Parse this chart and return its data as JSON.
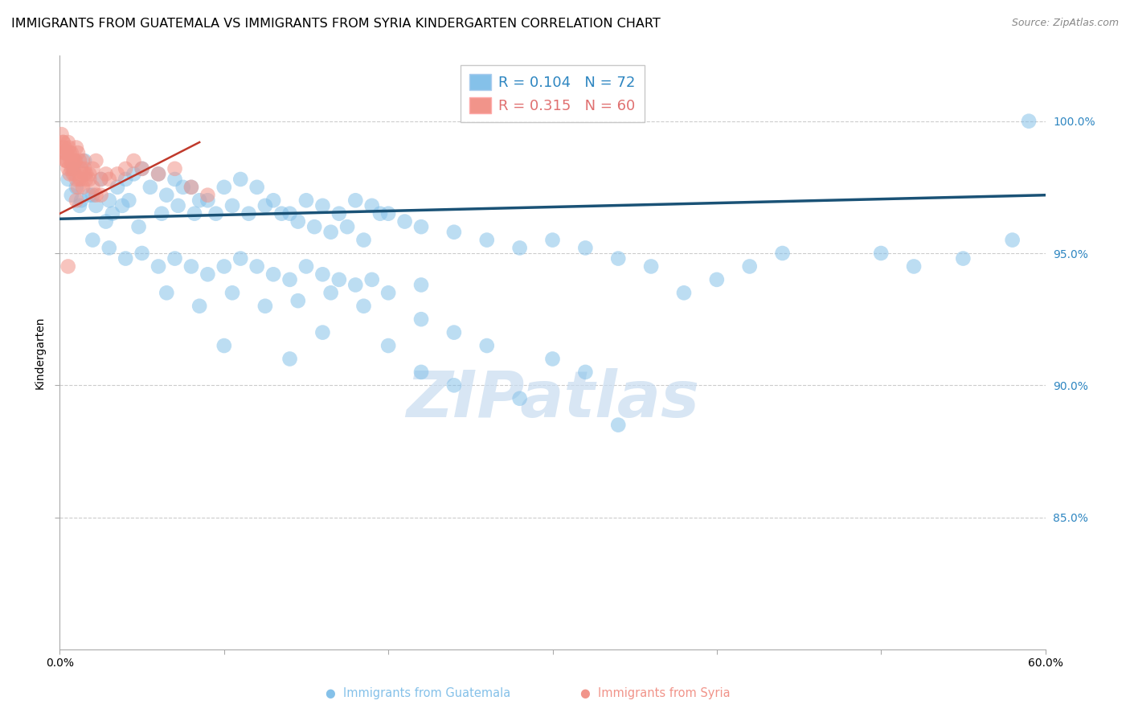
{
  "title": "IMMIGRANTS FROM GUATEMALA VS IMMIGRANTS FROM SYRIA KINDERGARTEN CORRELATION CHART",
  "source": "Source: ZipAtlas.com",
  "ylabel": "Kindergarten",
  "xlim": [
    0.0,
    60.0
  ],
  "ylim": [
    80.0,
    102.5
  ],
  "blue_color": "#85C1E9",
  "pink_color": "#F1948A",
  "blue_line_color": "#1A5276",
  "pink_line_color": "#C0392B",
  "right_axis_color": "#2E86C1",
  "watermark": "ZIPatlas",
  "legend_R1": "R = 0.104",
  "legend_N1": "N = 72",
  "legend_R2": "R = 0.315",
  "legend_N2": "N = 60",
  "blue_scatter_x": [
    0.5,
    0.8,
    1.0,
    1.5,
    2.0,
    2.5,
    3.0,
    3.5,
    1.2,
    1.8,
    4.0,
    4.5,
    5.0,
    6.0,
    7.0,
    8.0,
    9.0,
    10.0,
    11.0,
    12.0,
    13.0,
    14.0,
    15.0,
    6.5,
    7.5,
    8.5,
    16.0,
    17.0,
    18.0,
    3.8,
    4.2,
    5.5,
    9.5,
    10.5,
    11.5,
    12.5,
    13.5,
    14.5,
    19.0,
    20.0,
    2.2,
    2.8,
    3.2,
    4.8,
    6.2,
    7.2,
    8.2,
    15.5,
    16.5,
    17.5,
    18.5,
    19.5,
    21.0,
    22.0,
    24.0,
    26.0,
    28.0,
    30.0,
    32.0,
    34.0,
    36.0,
    38.0,
    40.0,
    42.0,
    44.0,
    50.0,
    52.0,
    55.0,
    58.0,
    0.7,
    1.3,
    59.0
  ],
  "blue_scatter_y": [
    97.8,
    98.2,
    97.5,
    98.5,
    97.2,
    97.8,
    97.0,
    97.5,
    96.8,
    97.2,
    97.8,
    98.0,
    98.2,
    98.0,
    97.8,
    97.5,
    97.0,
    97.5,
    97.8,
    97.5,
    97.0,
    96.5,
    97.0,
    97.2,
    97.5,
    97.0,
    96.8,
    96.5,
    97.0,
    96.8,
    97.0,
    97.5,
    96.5,
    96.8,
    96.5,
    96.8,
    96.5,
    96.2,
    96.8,
    96.5,
    96.8,
    96.2,
    96.5,
    96.0,
    96.5,
    96.8,
    96.5,
    96.0,
    95.8,
    96.0,
    95.5,
    96.5,
    96.2,
    96.0,
    95.8,
    95.5,
    95.2,
    95.5,
    95.2,
    94.8,
    94.5,
    93.5,
    94.0,
    94.5,
    95.0,
    95.0,
    94.5,
    94.8,
    95.5,
    97.2,
    97.0,
    100.0
  ],
  "blue_scatter_x2": [
    2.0,
    3.0,
    4.0,
    5.0,
    6.0,
    7.0,
    8.0,
    9.0,
    10.0,
    11.0,
    12.0,
    13.0,
    14.0,
    15.0,
    16.0,
    17.0,
    18.0,
    19.0,
    20.0,
    22.0,
    6.5,
    8.5,
    10.5,
    12.5,
    14.5,
    16.5,
    18.5,
    22.0,
    24.0,
    26.0
  ],
  "blue_scatter_y2": [
    95.5,
    95.2,
    94.8,
    95.0,
    94.5,
    94.8,
    94.5,
    94.2,
    94.5,
    94.8,
    94.5,
    94.2,
    94.0,
    94.5,
    94.2,
    94.0,
    93.8,
    94.0,
    93.5,
    93.8,
    93.5,
    93.0,
    93.5,
    93.0,
    93.2,
    93.5,
    93.0,
    92.5,
    92.0,
    91.5
  ],
  "blue_low_x": [
    10.0,
    14.0,
    16.0,
    20.0,
    22.0,
    24.0,
    28.0,
    30.0,
    32.0,
    34.0
  ],
  "blue_low_y": [
    91.5,
    91.0,
    92.0,
    91.5,
    90.5,
    90.0,
    89.5,
    91.0,
    90.5,
    88.5
  ],
  "pink_scatter_x": [
    0.1,
    0.15,
    0.2,
    0.25,
    0.3,
    0.35,
    0.4,
    0.45,
    0.5,
    0.55,
    0.6,
    0.65,
    0.7,
    0.75,
    0.8,
    0.85,
    0.9,
    0.95,
    1.0,
    1.1,
    1.2,
    1.3,
    1.4,
    1.5,
    1.6,
    1.8,
    2.0,
    2.2,
    2.5,
    2.8,
    3.0,
    3.5,
    4.0,
    4.5,
    5.0,
    6.0,
    7.0,
    8.0,
    9.0,
    0.2,
    0.3,
    0.4,
    0.5,
    0.6,
    0.7,
    0.8,
    0.9,
    1.0,
    1.1,
    1.2,
    1.3,
    1.4,
    1.5,
    1.6,
    1.8,
    2.0,
    2.2,
    2.5,
    1.0,
    0.5
  ],
  "pink_scatter_y": [
    99.5,
    99.0,
    99.2,
    98.8,
    99.0,
    98.5,
    98.8,
    98.5,
    99.2,
    99.0,
    98.8,
    98.5,
    98.8,
    98.5,
    98.5,
    98.2,
    98.5,
    98.5,
    99.0,
    98.8,
    98.5,
    98.2,
    98.5,
    98.2,
    98.0,
    97.8,
    97.5,
    97.2,
    97.8,
    98.0,
    97.8,
    98.0,
    98.2,
    98.5,
    98.2,
    98.0,
    98.2,
    97.5,
    97.2,
    99.2,
    98.8,
    98.5,
    98.2,
    98.0,
    98.2,
    98.0,
    98.0,
    97.8,
    97.5,
    97.8,
    97.8,
    97.5,
    98.0,
    97.8,
    98.0,
    98.2,
    98.5,
    97.2,
    97.0,
    94.5
  ],
  "grid_color": "#CCCCCC",
  "background_color": "#FFFFFF",
  "title_fontsize": 11.5,
  "axis_label_fontsize": 10,
  "tick_fontsize": 10,
  "legend_fontsize": 13
}
